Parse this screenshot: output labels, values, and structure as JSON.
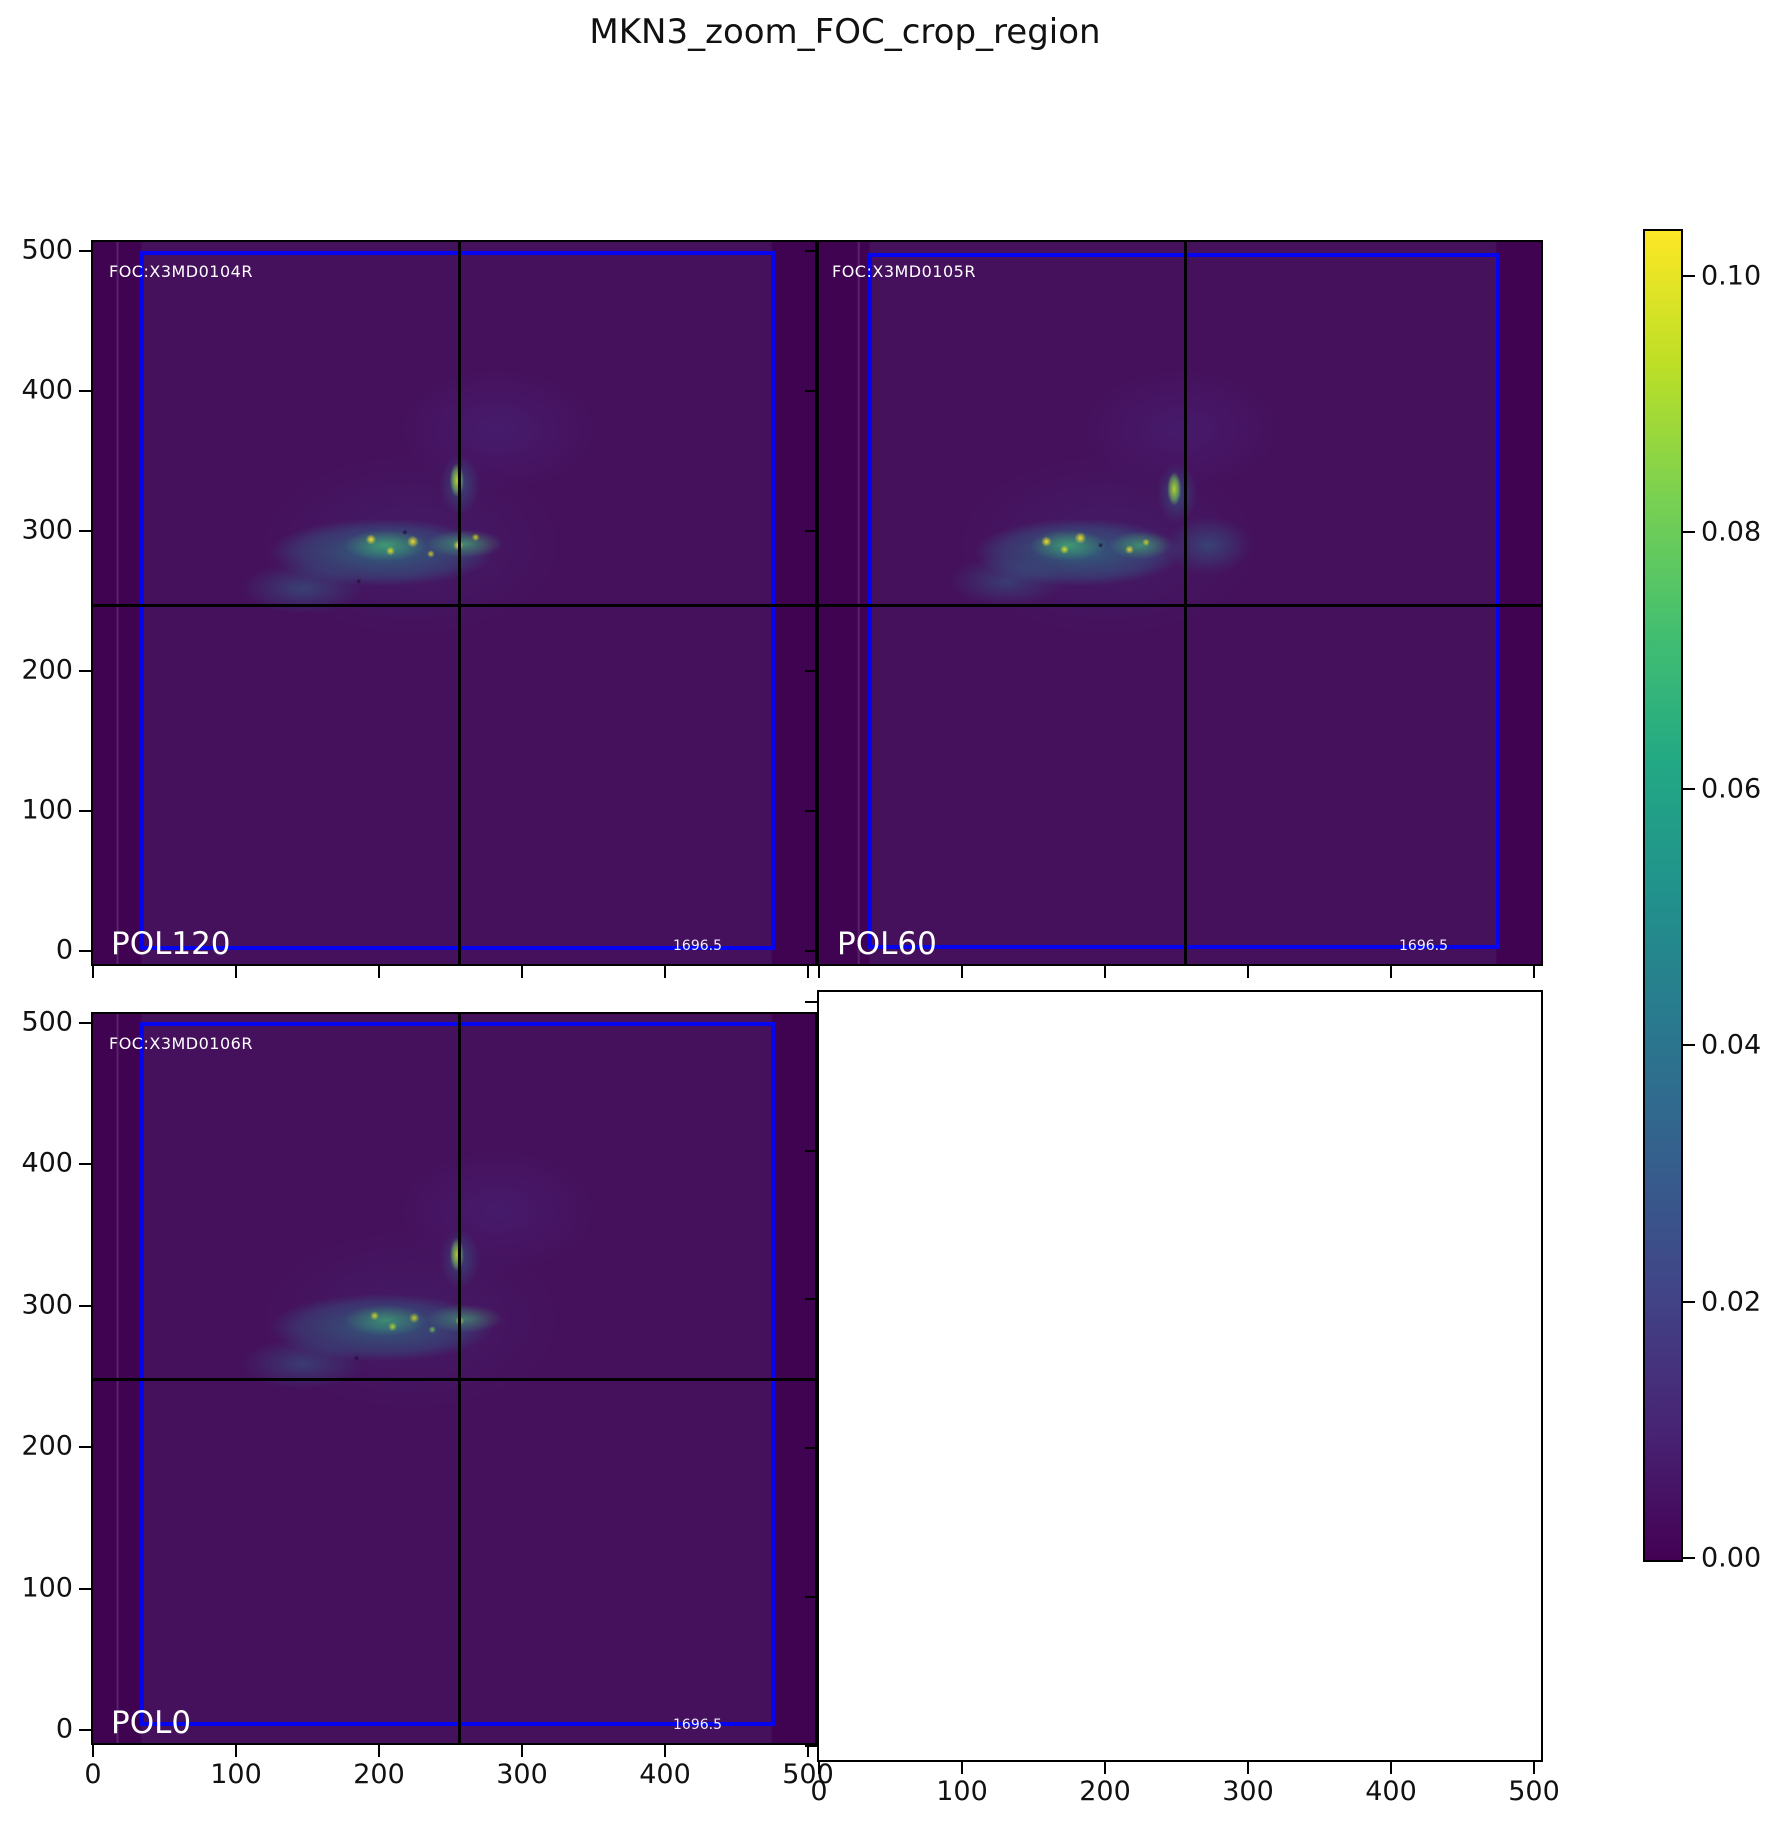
{
  "figure": {
    "title": "MKN3_zoom_FOC_crop_region"
  },
  "panels": [
    {
      "id": "pol120",
      "pol_label": "POL120",
      "foc_label": "FOC:X3MD0104R",
      "corner_value": "1696.5"
    },
    {
      "id": "pol60",
      "pol_label": "POL60",
      "foc_label": "FOC:X3MD0105R",
      "corner_value": "1696.5"
    },
    {
      "id": "pol0",
      "pol_label": "POL0",
      "foc_label": "FOC:X3MD0106R",
      "corner_value": "1696.5"
    },
    {
      "id": "empty"
    }
  ],
  "axes": {
    "x_tick_labels": [
      "0",
      "100",
      "200",
      "300",
      "400",
      "500"
    ],
    "y_tick_labels": [
      "500",
      "400",
      "300",
      "200",
      "100",
      "0"
    ]
  },
  "colorbar": {
    "colormap": "viridis",
    "tick_labels": [
      "0.10",
      "0.08",
      "0.06",
      "0.04",
      "0.02",
      "0.00"
    ],
    "vmin": 0.0,
    "vmax": 0.104
  },
  "colors": {
    "crop_box": "#0505f2",
    "crosshair": "#000000",
    "background_min": "#440154",
    "peak": "#fde725",
    "annotation_text": "#ffffff"
  },
  "chart_data": {
    "type": "heatmap",
    "title": "MKN3_zoom_FOC_crop_region",
    "colormap": "viridis",
    "color_scale": {
      "vmin": 0.0,
      "vmax": 0.104,
      "colorbar_ticks": [
        0.1,
        0.08,
        0.06,
        0.04,
        0.02,
        0.0
      ]
    },
    "x_range": [
      0,
      500
    ],
    "y_range": [
      0,
      500
    ],
    "x_ticks": [
      0,
      100,
      200,
      300,
      400,
      500
    ],
    "y_ticks": [
      0,
      100,
      200,
      300,
      400,
      500
    ],
    "grid": false,
    "legend": "vertical colorbar at right",
    "panels": [
      {
        "position": "top-left",
        "polarizer": "POL120",
        "exposure_id": "FOC:X3MD0104R",
        "annotation_value": 1696.5,
        "crop_box": {
          "x": [
            33,
            475
          ],
          "y": [
            3,
            500
          ]
        },
        "crosshair": {
          "x": 255,
          "y": 248
        },
        "emission_region": {
          "x_extent": [
            110,
            290
          ],
          "y_extent": [
            248,
            308
          ],
          "knot_peak_value": 0.1,
          "description": "clumpy S-shaped emission band with bright yellow-green knots; bright streak near crosshair at (255, 330)"
        }
      },
      {
        "position": "top-right",
        "polarizer": "POL60",
        "exposure_id": "FOC:X3MD0105R",
        "annotation_value": 1696.5,
        "crop_box": {
          "x": [
            33,
            475
          ],
          "y": [
            3,
            500
          ]
        },
        "crosshair": {
          "x": 255,
          "y": 248
        },
        "emission_region": {
          "x_extent": [
            110,
            292
          ],
          "y_extent": [
            248,
            308
          ],
          "knot_peak_value": 0.1,
          "description": "same emission band; brightest knots toward band center-left, streak at (250, 325)"
        }
      },
      {
        "position": "bottom-left",
        "polarizer": "POL0",
        "exposure_id": "FOC:X3MD0106R",
        "annotation_value": 1696.5,
        "crop_box": {
          "x": [
            33,
            475
          ],
          "y": [
            3,
            500
          ]
        },
        "crosshair": {
          "x": 255,
          "y": 248
        },
        "emission_region": {
          "x_extent": [
            110,
            290
          ],
          "y_extent": [
            248,
            308
          ],
          "knot_peak_value": 0.09,
          "description": "same emission band, slightly fainter and more diffuse"
        }
      },
      {
        "position": "bottom-right",
        "empty": true
      }
    ]
  }
}
